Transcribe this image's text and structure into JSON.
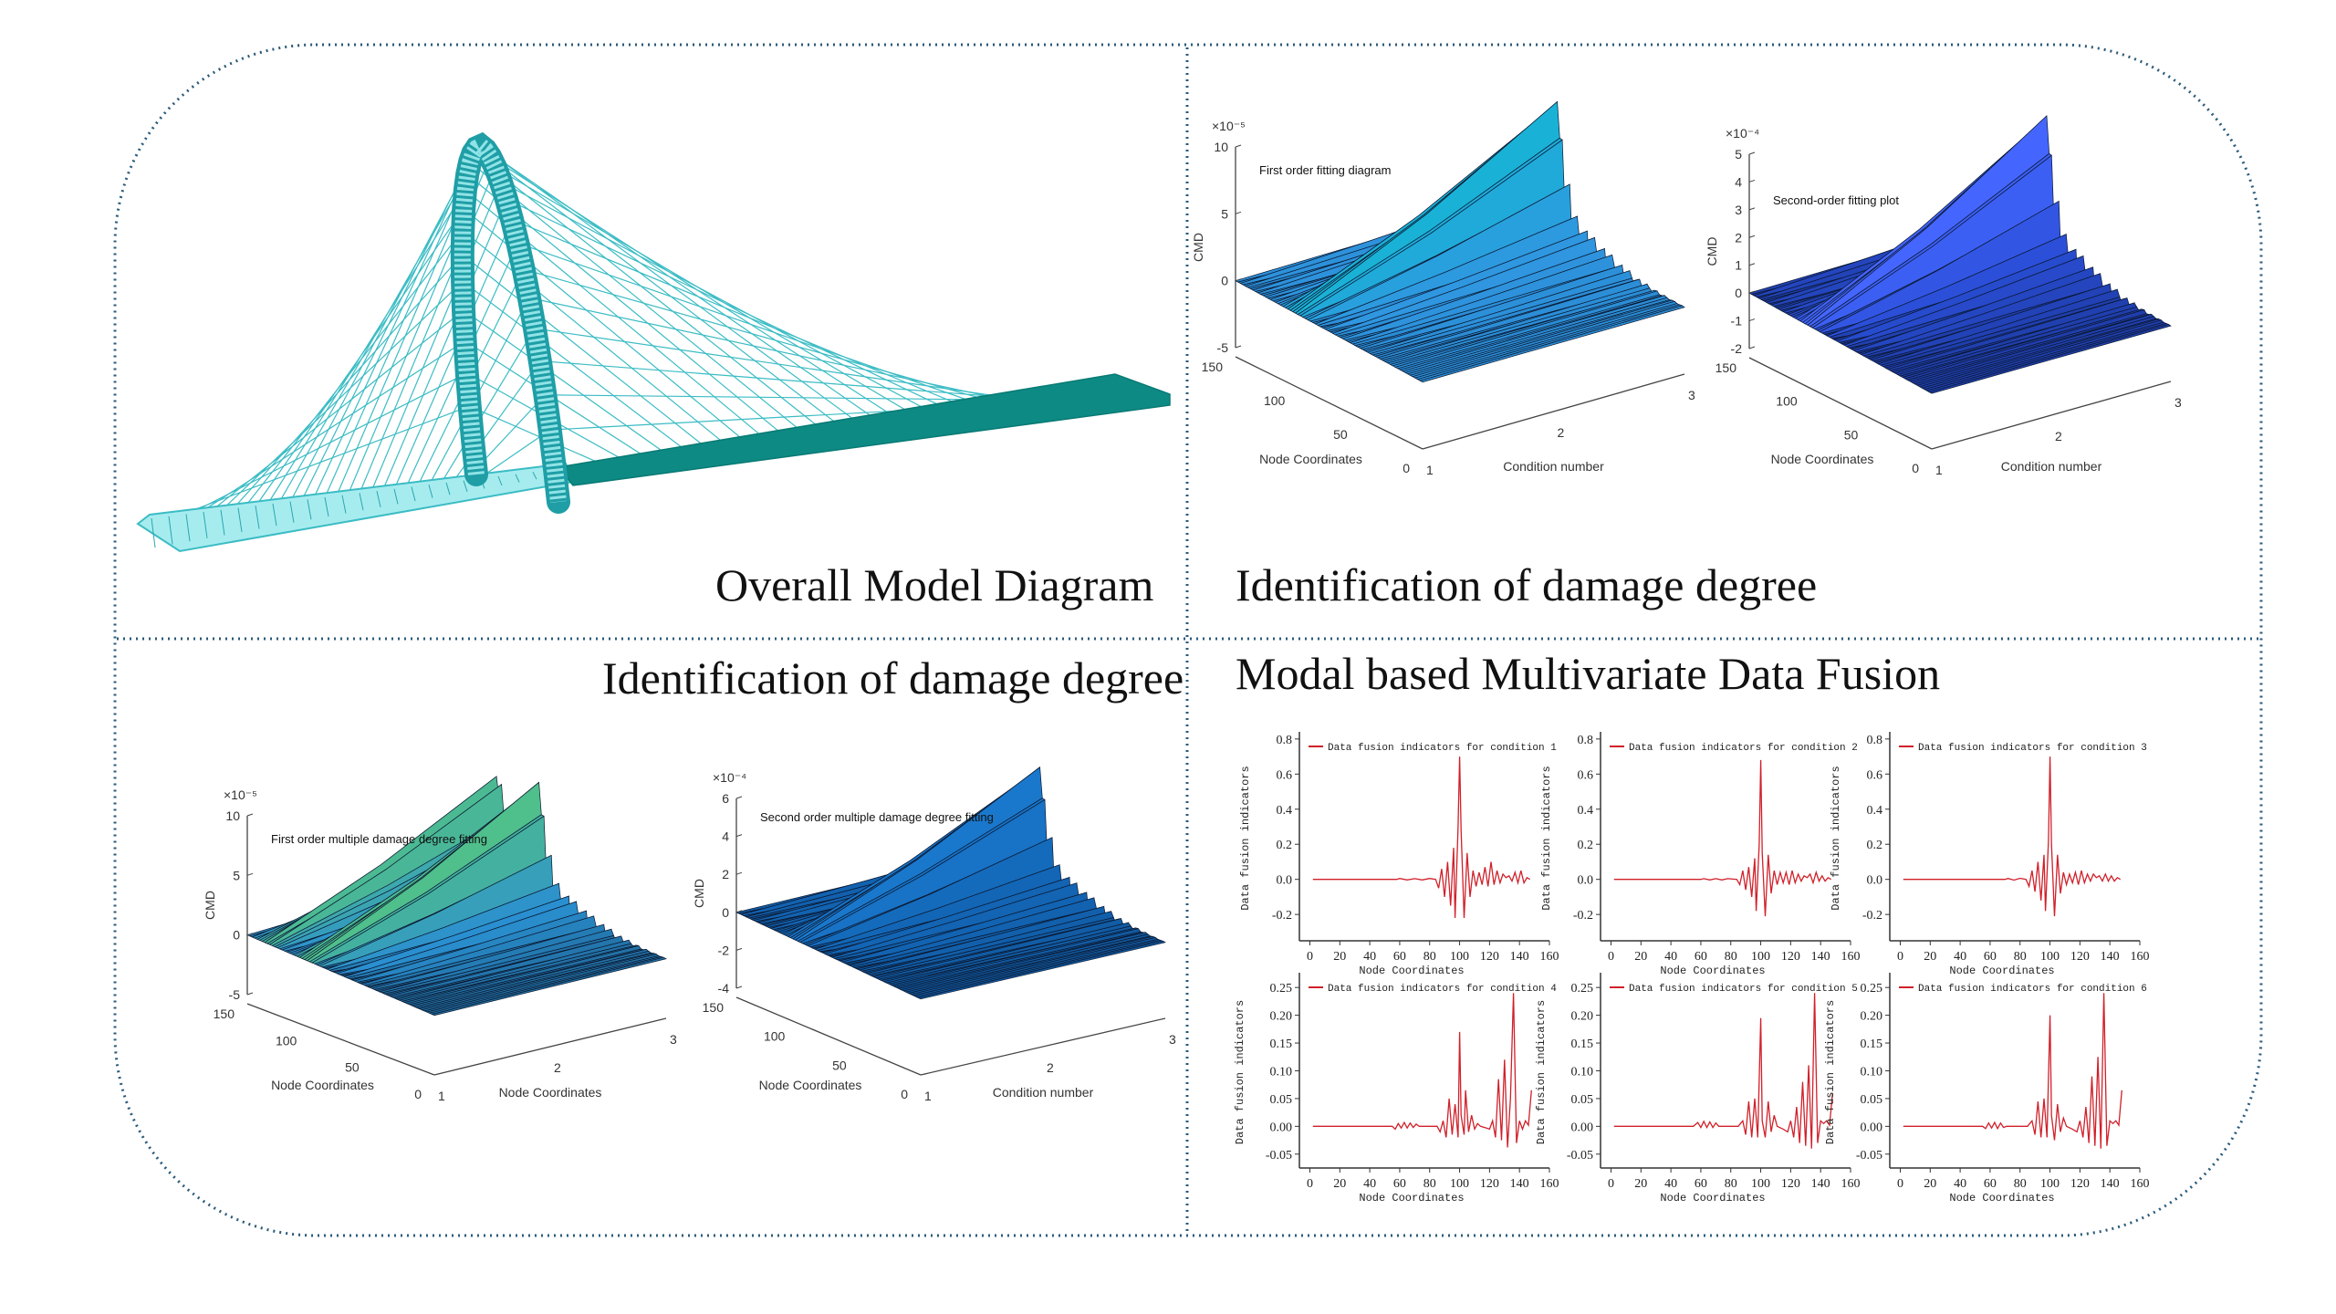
{
  "panels": {
    "model": {
      "title": "Overall Model Diagram"
    },
    "damage_top": {
      "title": "Identification of damage degree"
    },
    "damage_bottom": {
      "title": "Identification of damage degree"
    },
    "fusion": {
      "title": "Modal based Multivariate Data Fusion"
    }
  },
  "colors": {
    "border": "#2b5a7a",
    "bridge_wire": "#3bbcc4",
    "bridge_deck_dark": "#0e8a84",
    "fusion_line": "#d0202a"
  },
  "chart_data": [
    {
      "type": "surface",
      "annotation": "First order fitting diagram",
      "exponent": "×10⁻⁵",
      "zlabel": "CMD",
      "xlabel": "Node Coordinates",
      "ylabel": "Condition number",
      "xticks": [
        0,
        50,
        100,
        150
      ],
      "yticks": [
        1,
        2,
        3
      ],
      "zticks": [
        -5,
        0,
        5,
        10
      ],
      "zlim": [
        -5,
        10
      ],
      "peak": 10,
      "colors": [
        "#1f6fb8",
        "#2f97e0",
        "#19b2d6"
      ]
    },
    {
      "type": "surface",
      "annotation": "Second-order fitting plot",
      "exponent": "×10⁻⁴",
      "zlabel": "CMD",
      "xlabel": "Node Coordinates",
      "ylabel": "Condition number",
      "xticks": [
        0,
        50,
        100,
        150
      ],
      "yticks": [
        1,
        2,
        3
      ],
      "zticks": [
        -2,
        -1,
        0,
        1,
        2,
        3,
        4,
        5
      ],
      "zlim": [
        -2,
        5
      ],
      "peak": 5,
      "colors": [
        "#0c1f5c",
        "#2a4fd8",
        "#4466ff"
      ]
    },
    {
      "type": "surface",
      "annotation": "First order multiple damage degree fitting",
      "exponent": "×10⁻⁵",
      "zlabel": "CMD",
      "xlabel": "Node Coordinates",
      "ylabel": "Node Coordinates",
      "xticks": [
        0,
        50,
        100,
        150
      ],
      "yticks": [
        1,
        2,
        3
      ],
      "zticks": [
        -5,
        0,
        5,
        10
      ],
      "zlim": [
        -5,
        10
      ],
      "peak": 10,
      "colors": [
        "#0a1a2a",
        "#2a8fd0",
        "#4fbf8c"
      ]
    },
    {
      "type": "surface",
      "annotation": "Second order multiple damage degree fitting",
      "exponent": "×10⁻⁴",
      "zlabel": "CMD",
      "xlabel": "Node Coordinates",
      "ylabel": "Condition number",
      "xticks": [
        0,
        50,
        100,
        150
      ],
      "yticks": [
        1,
        2,
        3
      ],
      "zticks": [
        -4,
        -2,
        0,
        2,
        4,
        6
      ],
      "zlim": [
        -4,
        6
      ],
      "peak": 6,
      "colors": [
        "#050d18",
        "#1262b0",
        "#1a78cc"
      ]
    },
    {
      "type": "line",
      "legend": "Data fusion indicators for condition 1",
      "xlabel": "Node Coordinates",
      "ylabel": "Data fusion indicators",
      "xlim": [
        -7,
        160
      ],
      "ylim": [
        -0.35,
        0.82
      ],
      "xticks": [
        0,
        20,
        40,
        60,
        80,
        100,
        120,
        140,
        160
      ],
      "yticks": [
        "-0.2",
        "0.0",
        "0.2",
        "0.4",
        "0.6",
        "0.8"
      ],
      "x": [
        2,
        58,
        60,
        65,
        70,
        75,
        80,
        84,
        86,
        88,
        90,
        92,
        94,
        96,
        97,
        99,
        100,
        101,
        103,
        105,
        107,
        109,
        111,
        113,
        115,
        117,
        119,
        121,
        123,
        125,
        127,
        129,
        131,
        133,
        135,
        137,
        139,
        141,
        143,
        145,
        147
      ],
      "y": [
        0,
        0,
        0.005,
        -0.003,
        0.004,
        -0.003,
        0.005,
        0,
        -0.05,
        0.06,
        -0.1,
        0.1,
        -0.15,
        0.18,
        -0.22,
        0.3,
        0.7,
        0.28,
        -0.22,
        0.15,
        -0.1,
        0.05,
        -0.04,
        0.04,
        -0.03,
        0.07,
        -0.04,
        0.1,
        -0.03,
        0.05,
        -0.02,
        0.03,
        0.01,
        0.02,
        -0.01,
        0.04,
        -0.02,
        0.05,
        -0.02,
        0.01,
        0
      ]
    },
    {
      "type": "line",
      "legend": "Data fusion indicators for condition 2",
      "xlabel": "Node Coordinates",
      "ylabel": "Data fusion indicators",
      "xlim": [
        -7,
        160
      ],
      "ylim": [
        -0.35,
        0.82
      ],
      "xticks": [
        0,
        20,
        40,
        60,
        80,
        100,
        120,
        140,
        160
      ],
      "yticks": [
        "-0.2",
        "0.0",
        "0.2",
        "0.4",
        "0.6",
        "0.8"
      ],
      "x": [
        2,
        60,
        62,
        66,
        70,
        74,
        78,
        84,
        86,
        88,
        90,
        92,
        94,
        96,
        97,
        99,
        100,
        101,
        103,
        105,
        107,
        109,
        111,
        113,
        115,
        117,
        119,
        121,
        123,
        125,
        127,
        129,
        131,
        133,
        135,
        137,
        139,
        141,
        143,
        145,
        147
      ],
      "y": [
        0,
        0,
        0.004,
        -0.003,
        0.004,
        -0.003,
        0.004,
        0,
        -0.03,
        0.05,
        -0.06,
        0.07,
        -0.1,
        0.12,
        -0.18,
        0.2,
        0.68,
        0.15,
        -0.21,
        0.14,
        -0.08,
        0.05,
        -0.03,
        0.04,
        -0.02,
        0.04,
        -0.03,
        0.05,
        -0.02,
        0.03,
        -0.01,
        0.02,
        0.01,
        0.03,
        -0.02,
        0.04,
        -0.01,
        0.02,
        -0.01,
        0.01,
        0
      ]
    },
    {
      "type": "line",
      "legend": "Data fusion indicators for condition 3",
      "xlabel": "Node Coordinates",
      "ylabel": "Data fusion indicators",
      "xlim": [
        -7,
        160
      ],
      "ylim": [
        -0.35,
        0.82
      ],
      "xticks": [
        0,
        20,
        40,
        60,
        80,
        100,
        120,
        140,
        160
      ],
      "yticks": [
        "-0.2",
        "0.0",
        "0.2",
        "0.4",
        "0.6",
        "0.8"
      ],
      "x": [
        2,
        70,
        72,
        76,
        80,
        84,
        86,
        88,
        90,
        92,
        94,
        96,
        97,
        99,
        100,
        101,
        103,
        105,
        107,
        109,
        111,
        113,
        115,
        117,
        119,
        121,
        123,
        125,
        127,
        129,
        131,
        133,
        135,
        137,
        139,
        141,
        143,
        145,
        147
      ],
      "y": [
        0,
        0,
        0.005,
        -0.004,
        0.006,
        0,
        -0.04,
        0.05,
        -0.07,
        0.1,
        -0.12,
        0.14,
        -0.18,
        0.22,
        0.7,
        0.2,
        -0.21,
        0.14,
        -0.08,
        0.04,
        -0.03,
        0.03,
        -0.02,
        0.04,
        -0.03,
        0.05,
        -0.02,
        0.03,
        -0.01,
        0.03,
        0.01,
        0.02,
        -0.01,
        0.03,
        -0.01,
        0.02,
        -0.01,
        0.01,
        0
      ]
    },
    {
      "type": "line",
      "legend": "Data fusion indicators for condition 4",
      "xlabel": "Node Coordinates",
      "ylabel": "Data fusion indicators",
      "xlim": [
        -7,
        160
      ],
      "ylim": [
        -0.075,
        0.27
      ],
      "xticks": [
        0,
        20,
        40,
        60,
        80,
        100,
        120,
        140,
        160
      ],
      "yticks": [
        "-0.05",
        "0.00",
        "0.05",
        "0.10",
        "0.15",
        "0.20",
        "0.25"
      ],
      "x": [
        2,
        55,
        57,
        59,
        61,
        63,
        65,
        67,
        69,
        71,
        73,
        85,
        87,
        89,
        91,
        93,
        95,
        97,
        99,
        100,
        101,
        103,
        104,
        106,
        108,
        110,
        112,
        114,
        118,
        120,
        122,
        124,
        126,
        128,
        130,
        132,
        134,
        136,
        138,
        140,
        142,
        144,
        146,
        148
      ],
      "y": [
        0,
        0,
        -0.005,
        0.005,
        -0.003,
        0.007,
        -0.003,
        0.006,
        -0.002,
        0.004,
        0,
        0,
        -0.01,
        0.01,
        -0.02,
        0.05,
        -0.015,
        0.04,
        -0.02,
        0.17,
        0.02,
        -0.015,
        0.065,
        -0.01,
        0.02,
        -0.005,
        0.005,
        0,
        -0.003,
        -0.005,
        0.01,
        -0.02,
        0.085,
        -0.025,
        0.12,
        -0.038,
        0.05,
        0.24,
        -0.03,
        0.01,
        -0.005,
        0.01,
        0.002,
        0.065
      ]
    },
    {
      "type": "line",
      "legend": "Data fusion indicators for condition 5",
      "xlabel": "Node Coordinates",
      "ylabel": "Data fusion indicators",
      "xlim": [
        -7,
        160
      ],
      "ylim": [
        -0.075,
        0.27
      ],
      "xticks": [
        0,
        20,
        40,
        60,
        80,
        100,
        120,
        140,
        160
      ],
      "yticks": [
        "-0.05",
        "0.00",
        "0.05",
        "0.10",
        "0.15",
        "0.20",
        "0.25"
      ],
      "x": [
        2,
        55,
        58,
        60,
        62,
        64,
        66,
        68,
        70,
        72,
        85,
        88,
        90,
        92,
        94,
        96,
        98,
        100,
        101,
        103,
        105,
        107,
        109,
        111,
        115,
        118,
        120,
        122,
        124,
        126,
        128,
        130,
        132,
        134,
        136,
        138,
        140,
        142,
        144,
        146,
        148
      ],
      "y": [
        0,
        0,
        0.007,
        -0.002,
        0.009,
        -0.002,
        0.008,
        -0.002,
        0.006,
        0,
        0,
        0.01,
        -0.015,
        0.045,
        -0.02,
        0.05,
        -0.02,
        0.195,
        0.01,
        -0.02,
        0.045,
        -0.01,
        0.02,
        0,
        -0.005,
        -0.01,
        0.01,
        -0.02,
        0.035,
        -0.03,
        0.08,
        -0.035,
        0.11,
        -0.04,
        0.24,
        -0.03,
        0.01,
        0.005,
        0.01,
        0.002,
        0.06
      ]
    },
    {
      "type": "line",
      "legend": "Data fusion indicators for condition 6",
      "xlabel": "Node Coordinates",
      "ylabel": "Data fusion indicators",
      "xlim": [
        -7,
        160
      ],
      "ylim": [
        -0.075,
        0.27
      ],
      "xticks": [
        0,
        20,
        40,
        60,
        80,
        100,
        120,
        140,
        160
      ],
      "yticks": [
        "-0.05",
        "0.00",
        "0.05",
        "0.10",
        "0.15",
        "0.20",
        "0.25"
      ],
      "x": [
        2,
        55,
        57,
        59,
        61,
        63,
        65,
        67,
        69,
        71,
        85,
        88,
        90,
        92,
        94,
        96,
        98,
        100,
        101,
        103,
        105,
        107,
        109,
        111,
        115,
        118,
        120,
        122,
        124,
        126,
        128,
        130,
        132,
        134,
        136,
        138,
        140,
        142,
        144,
        146,
        148
      ],
      "y": [
        0,
        0,
        -0.004,
        0.006,
        -0.003,
        0.007,
        -0.004,
        0.006,
        -0.002,
        0,
        0,
        0.01,
        -0.015,
        0.045,
        -0.02,
        0.05,
        -0.02,
        0.2,
        0.02,
        -0.025,
        0.04,
        -0.01,
        0.015,
        0,
        -0.005,
        -0.01,
        0.01,
        -0.02,
        0.035,
        -0.03,
        0.09,
        -0.035,
        0.125,
        -0.04,
        0.24,
        -0.035,
        0.01,
        0.005,
        0.01,
        0.002,
        0.065
      ]
    }
  ]
}
